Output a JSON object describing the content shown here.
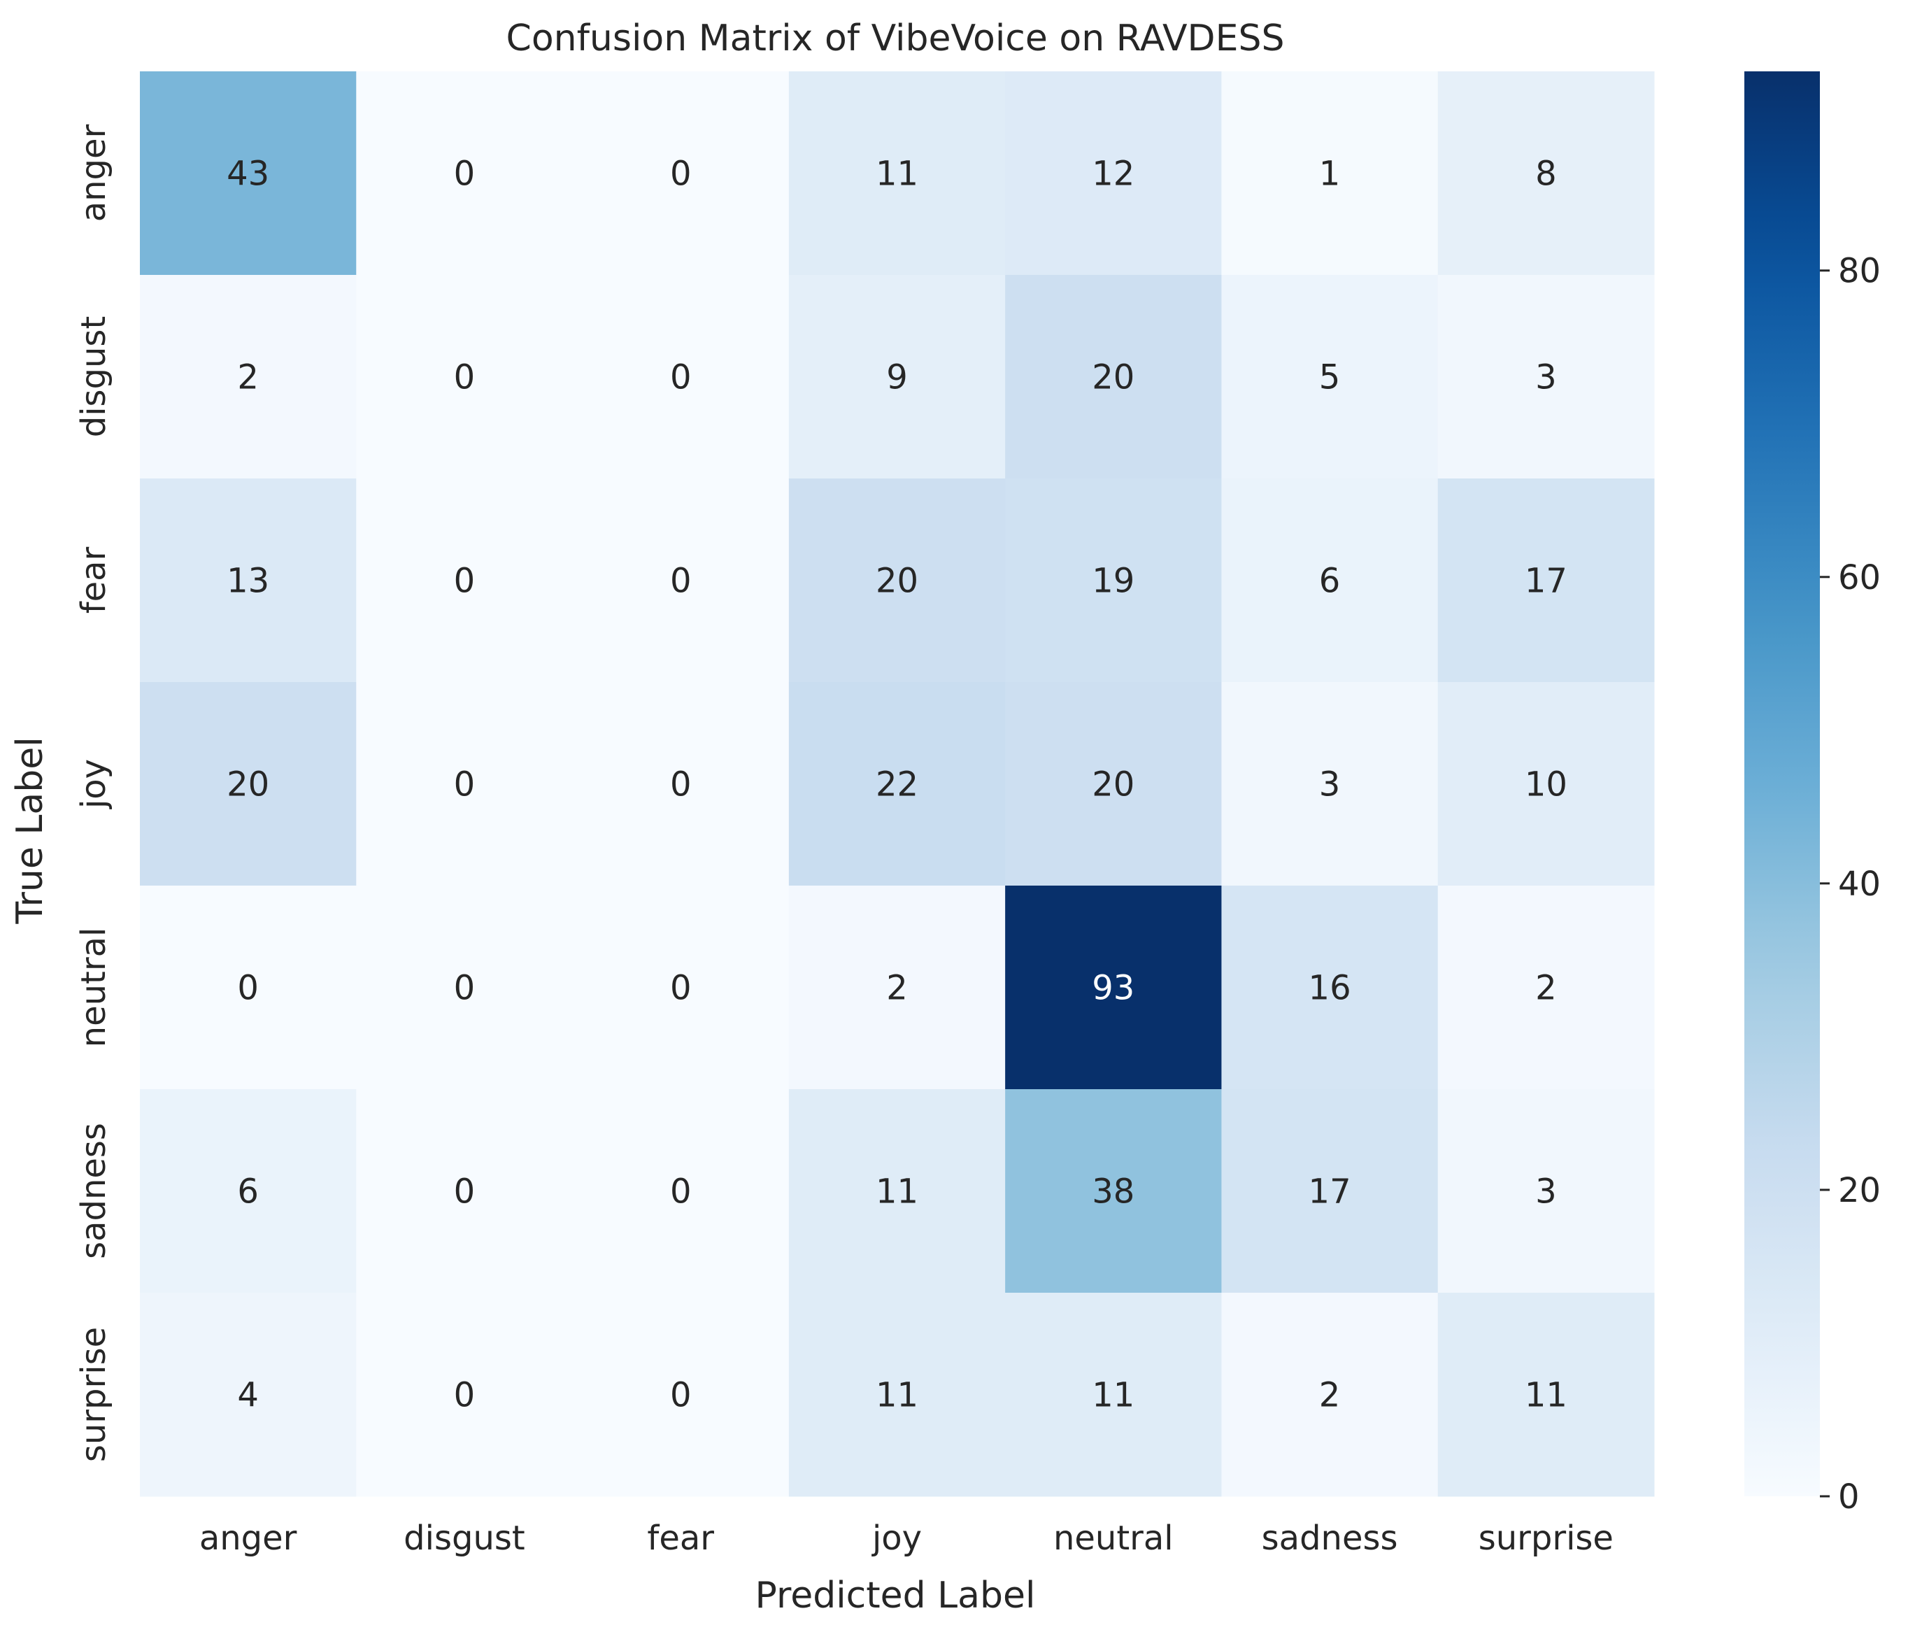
{
  "chart_data": {
    "type": "heatmap",
    "title": "Confusion Matrix of VibeVoice on RAVDESS",
    "xlabel": "Predicted Label",
    "ylabel": "True Label",
    "x_categories": [
      "anger",
      "disgust",
      "fear",
      "joy",
      "neutral",
      "sadness",
      "surprise"
    ],
    "y_categories": [
      "anger",
      "disgust",
      "fear",
      "joy",
      "neutral",
      "sadness",
      "surprise"
    ],
    "values": [
      [
        43,
        0,
        0,
        11,
        12,
        1,
        8
      ],
      [
        2,
        0,
        0,
        9,
        20,
        5,
        3
      ],
      [
        13,
        0,
        0,
        20,
        19,
        6,
        17
      ],
      [
        20,
        0,
        0,
        22,
        20,
        3,
        10
      ],
      [
        0,
        0,
        0,
        2,
        93,
        16,
        2
      ],
      [
        6,
        0,
        0,
        11,
        38,
        17,
        3
      ],
      [
        4,
        0,
        0,
        11,
        11,
        2,
        11
      ]
    ],
    "colormap": "Blues",
    "colorbar": {
      "range": [
        0,
        93
      ],
      "ticks": [
        0,
        20,
        40,
        60,
        80
      ]
    },
    "grid": false,
    "colors": {
      "light_text": "#ffffff",
      "dark_text": "#262626"
    }
  }
}
